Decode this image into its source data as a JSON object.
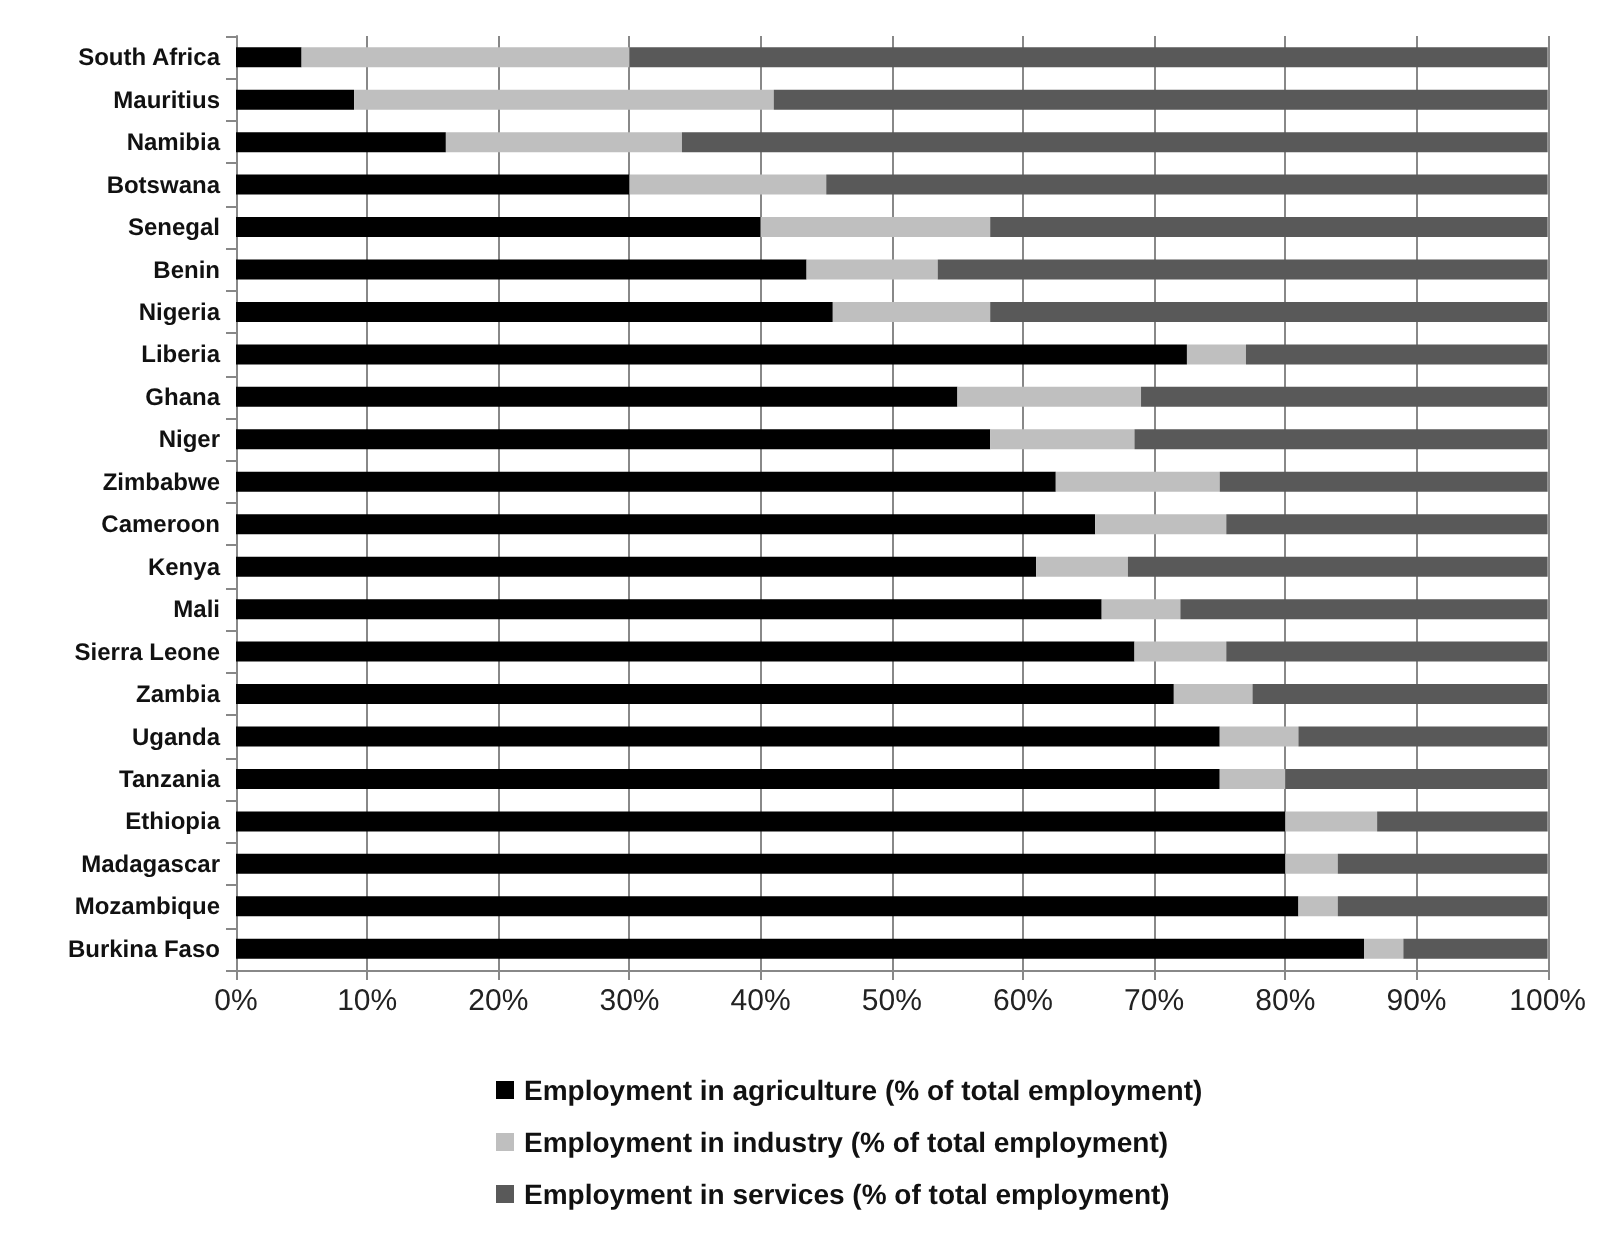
{
  "chart_data": {
    "type": "bar",
    "orientation": "horizontal",
    "stacked": true,
    "categories": [
      "South Africa",
      "Mauritius",
      "Namibia",
      "Botswana",
      "Senegal",
      "Benin",
      "Nigeria",
      "Liberia",
      "Ghana",
      "Niger",
      "Zimbabwe",
      "Cameroon",
      "Kenya",
      "Mali",
      "Sierra Leone",
      "Zambia",
      "Uganda",
      "Tanzania",
      "Ethiopia",
      "Madagascar",
      "Mozambique",
      "Burkina Faso"
    ],
    "series": [
      {
        "name": "Employment in agriculture (% of total employment)",
        "color": "#000000",
        "values": [
          5,
          9,
          16,
          30,
          40,
          43.5,
          45.5,
          72.5,
          55,
          57.5,
          62.5,
          65.5,
          61,
          66,
          68.5,
          71.5,
          75,
          75,
          80,
          80,
          81,
          86
        ]
      },
      {
        "name": "Employment in industry (% of total employment)",
        "color": "#bfbfbf",
        "values": [
          25,
          32,
          18,
          15,
          17.5,
          10,
          12,
          4.5,
          14,
          11,
          12.5,
          10,
          7,
          6,
          7,
          6,
          6,
          5,
          7,
          4,
          3,
          3
        ]
      },
      {
        "name": "Employment in services (% of total employment)",
        "color": "#595959",
        "values": [
          70,
          59,
          66,
          55,
          42.5,
          46.5,
          42.5,
          23,
          31,
          31.5,
          25,
          24.5,
          32,
          28,
          24.5,
          22.5,
          19,
          20,
          13,
          16,
          16,
          11
        ]
      }
    ],
    "xlim": [
      0,
      100
    ],
    "xticks": [
      {
        "value": 0,
        "label": "0%"
      },
      {
        "value": 10,
        "label": "10%"
      },
      {
        "value": 20,
        "label": "20%"
      },
      {
        "value": 30,
        "label": "30%"
      },
      {
        "value": 40,
        "label": "40%"
      },
      {
        "value": 50,
        "label": "50%"
      },
      {
        "value": 60,
        "label": "60%"
      },
      {
        "value": 70,
        "label": "70%"
      },
      {
        "value": 80,
        "label": "80%"
      },
      {
        "value": 90,
        "label": "90%"
      },
      {
        "value": 100,
        "label": "100%"
      }
    ],
    "grid": "x",
    "legend": "bottom"
  }
}
